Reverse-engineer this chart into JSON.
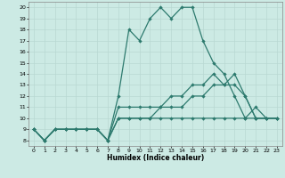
{
  "xlabel": "Humidex (Indice chaleur)",
  "bg_color": "#cceae4",
  "line_color": "#2d7a6e",
  "grid_color": "#b8d8d2",
  "xlim": [
    -0.5,
    23.5
  ],
  "ylim": [
    7.5,
    20.5
  ],
  "xticks": [
    0,
    1,
    2,
    3,
    4,
    5,
    6,
    7,
    8,
    9,
    10,
    11,
    12,
    13,
    14,
    15,
    16,
    17,
    18,
    19,
    20,
    21,
    22,
    23
  ],
  "yticks": [
    8,
    9,
    10,
    11,
    12,
    13,
    14,
    15,
    16,
    17,
    18,
    19,
    20
  ],
  "series_max": {
    "x": [
      0,
      1,
      2,
      3,
      4,
      5,
      6,
      7,
      8,
      9,
      10,
      11,
      12,
      13,
      14,
      15,
      16,
      17,
      18,
      19,
      20,
      21,
      22,
      23
    ],
    "y": [
      9,
      8,
      9,
      9,
      9,
      9,
      9,
      8,
      12,
      18,
      17,
      19,
      20,
      19,
      20,
      20,
      17,
      15,
      14,
      12,
      10,
      11,
      10,
      10
    ]
  },
  "series_q3": {
    "x": [
      0,
      1,
      2,
      3,
      4,
      5,
      6,
      7,
      8,
      9,
      10,
      11,
      12,
      13,
      14,
      15,
      16,
      17,
      18,
      19,
      20,
      21,
      22,
      23
    ],
    "y": [
      9,
      8,
      9,
      9,
      9,
      9,
      9,
      8,
      11,
      11,
      11,
      11,
      11,
      12,
      12,
      13,
      13,
      14,
      13,
      14,
      12,
      10,
      10,
      10
    ]
  },
  "series_mean": {
    "x": [
      0,
      1,
      2,
      3,
      4,
      5,
      6,
      7,
      8,
      9,
      10,
      11,
      12,
      13,
      14,
      15,
      16,
      17,
      18,
      19,
      20,
      21,
      22,
      23
    ],
    "y": [
      9,
      8,
      9,
      9,
      9,
      9,
      9,
      8,
      10,
      10,
      10,
      10,
      11,
      11,
      11,
      12,
      12,
      13,
      13,
      13,
      12,
      10,
      10,
      10
    ]
  },
  "series_min": {
    "x": [
      0,
      1,
      2,
      3,
      4,
      5,
      6,
      7,
      8,
      9,
      10,
      11,
      12,
      13,
      14,
      15,
      16,
      17,
      18,
      19,
      20,
      21,
      22,
      23
    ],
    "y": [
      9,
      8,
      9,
      9,
      9,
      9,
      9,
      8,
      10,
      10,
      10,
      10,
      10,
      10,
      10,
      10,
      10,
      10,
      10,
      10,
      10,
      10,
      10,
      10
    ]
  }
}
